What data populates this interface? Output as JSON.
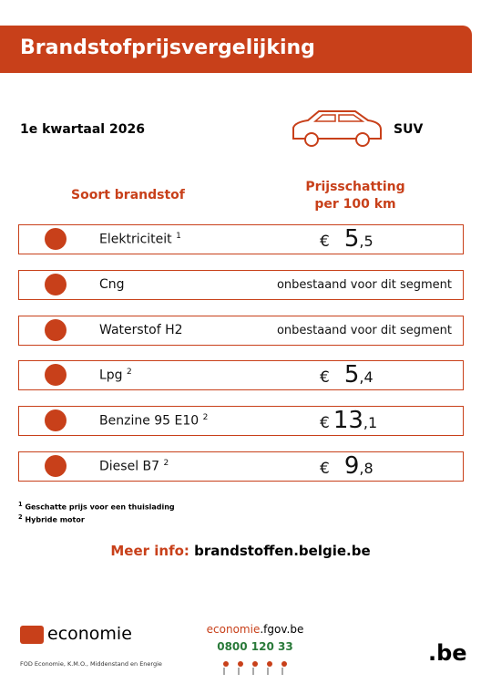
{
  "header": {
    "title": "Brandstofprijsvergelijking"
  },
  "period": "1e kwartaal 2026",
  "segment": "SUV",
  "columns": {
    "fuel": "Soort brandstof",
    "price": "Prijsschatting per 100 km"
  },
  "rows": [
    {
      "label": "Elektriciteit",
      "note": "1",
      "price": {
        "currency": "€",
        "integer": "5",
        "decimal": ",5"
      }
    },
    {
      "label": "Cng",
      "price_text": "onbestaand voor dit segment"
    },
    {
      "label": "Waterstof H2",
      "price_text": "onbestaand voor dit segment"
    },
    {
      "label": "Lpg",
      "note": "2",
      "price": {
        "currency": "€",
        "integer": "5",
        "decimal": ",4"
      }
    },
    {
      "label": "Benzine 95 E10",
      "note": "2",
      "price": {
        "currency": "€",
        "integer": "13",
        "decimal": ",1"
      }
    },
    {
      "label": "Diesel B7",
      "note": "2",
      "price": {
        "currency": "€",
        "integer": "9",
        "decimal": ",8"
      }
    }
  ],
  "footnotes": [
    {
      "mark": "1",
      "text": "Geschatte prijs voor een thuislading"
    },
    {
      "mark": "2",
      "text": "Hybride motor"
    }
  ],
  "more_info": {
    "label": "Meer info:",
    "link": "brandstoffen.belgie.be"
  },
  "footer": {
    "logo_text": "economie",
    "org": "FOD Economie, K.M.O., Middenstand en Energie",
    "site_prefix": "economie",
    "site_suffix": ".fgov.be",
    "phone": "0800 120 33",
    "be": ".be"
  }
}
